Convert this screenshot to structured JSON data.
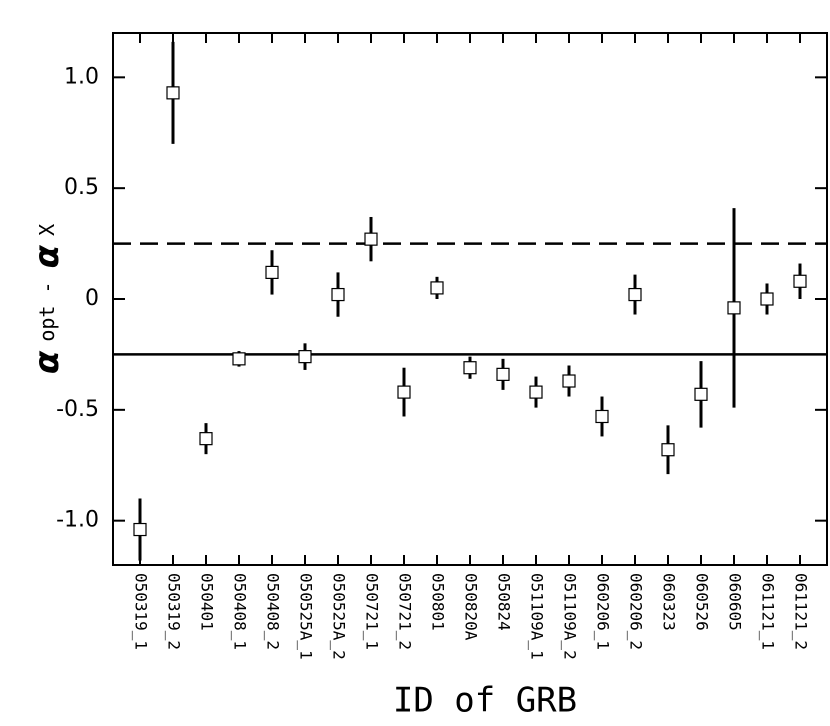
{
  "chart_data": {
    "type": "errorbar",
    "x_label": "ID of GRB",
    "y_label": [
      "α",
      "opt -",
      "α",
      "X"
    ],
    "categories": [
      "050319_1",
      "050319_2",
      "050401",
      "050408_1",
      "050408_2",
      "050525A_1",
      "050525A_2",
      "050721_1",
      "050721_2",
      "050801",
      "050820A",
      "050824",
      "051109A_1",
      "051109A_2",
      "060206_1",
      "060206_2",
      "060323",
      "060526",
      "060605",
      "061121_1",
      "061121_2"
    ],
    "values": [
      -1.04,
      0.93,
      -0.63,
      -0.27,
      0.12,
      -0.26,
      0.02,
      0.27,
      -0.42,
      0.05,
      -0.31,
      -0.34,
      -0.42,
      -0.37,
      -0.53,
      0.02,
      -0.68,
      -0.43,
      -0.04,
      0.0,
      0.08
    ],
    "errors": [
      0.14,
      0.23,
      0.07,
      0.035,
      0.1,
      0.06,
      0.1,
      0.1,
      0.11,
      0.05,
      0.05,
      0.07,
      0.07,
      0.07,
      0.09,
      0.09,
      0.11,
      0.15,
      0.45,
      0.07,
      0.08
    ],
    "color": "#000000",
    "ylim": [
      -1.2,
      1.2
    ],
    "yticks": [
      {
        "value": 1.0,
        "label": "1.0"
      },
      0.5,
      0,
      -0.5,
      {
        "value": -1.0,
        "label": "-1.0"
      }
    ],
    "hlines": [
      {
        "value": 0.25,
        "style": "dashed"
      },
      {
        "value": -0.25,
        "style": "solid"
      }
    ]
  }
}
